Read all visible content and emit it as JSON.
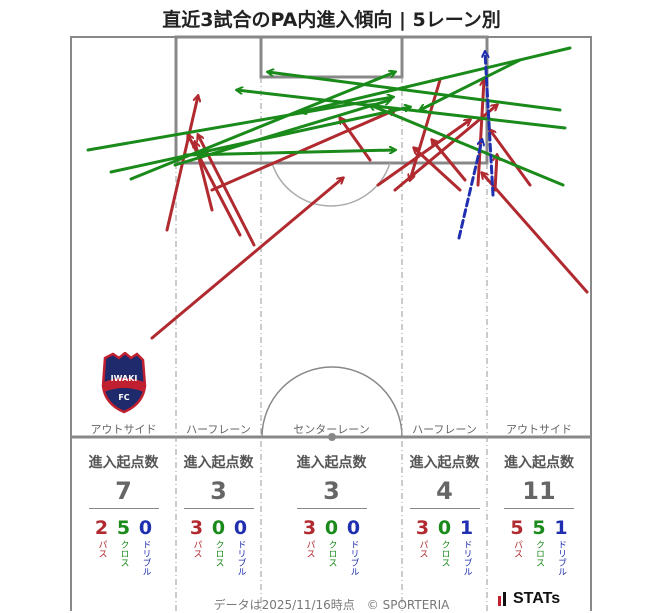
{
  "title": "直近3試合のPA内進入傾向 | 5レーン別",
  "colors": {
    "pass": "#b02a30",
    "cross": "#1a8a1a",
    "dribble": "#1f2fb0",
    "pitch_line": "#888888"
  },
  "lanes": [
    {
      "label": "アウトサイド",
      "header": "進入起点数",
      "total": "7",
      "pass": "2",
      "cross": "5",
      "dribble": "0"
    },
    {
      "label": "ハーフレーン",
      "header": "進入起点数",
      "total": "3",
      "pass": "3",
      "cross": "0",
      "dribble": "0"
    },
    {
      "label": "センターレーン",
      "header": "進入起点数",
      "total": "3",
      "pass": "3",
      "cross": "0",
      "dribble": "0"
    },
    {
      "label": "ハーフレーン",
      "header": "進入起点数",
      "total": "4",
      "pass": "3",
      "cross": "0",
      "dribble": "1"
    },
    {
      "label": "アウトサイド",
      "header": "進入起点数",
      "total": "11",
      "pass": "5",
      "cross": "5",
      "dribble": "1"
    }
  ],
  "breakdown_labels": {
    "pass": "パス",
    "cross": "クロス",
    "dribble": "ドリブル"
  },
  "logo_text": {
    "top": "IWAKI",
    "bottom": "FC"
  },
  "footer": "データは2025/11/16時点　© SPORTERIA",
  "brand": "STATs",
  "chart_data": {
    "type": "arrow-map",
    "entries": [
      {
        "kind": "pass",
        "from": [
          152,
          338
        ],
        "to": [
          343,
          178
        ]
      },
      {
        "kind": "pass",
        "from": [
          167,
          230
        ],
        "to": [
          198,
          96
        ]
      },
      {
        "kind": "pass",
        "from": [
          212,
          190
        ],
        "to": [
          395,
          110
        ]
      },
      {
        "kind": "pass",
        "from": [
          240,
          235
        ],
        "to": [
          188,
          135
        ]
      },
      {
        "kind": "pass",
        "from": [
          254,
          245
        ],
        "to": [
          198,
          135
        ]
      },
      {
        "kind": "pass",
        "from": [
          212,
          210
        ],
        "to": [
          195,
          142
        ]
      },
      {
        "kind": "pass",
        "from": [
          370,
          160
        ],
        "to": [
          340,
          118
        ]
      },
      {
        "kind": "pass",
        "from": [
          378,
          185
        ],
        "to": [
          470,
          120
        ]
      },
      {
        "kind": "pass",
        "from": [
          395,
          190
        ],
        "to": [
          497,
          105
        ]
      },
      {
        "kind": "pass",
        "from": [
          460,
          190
        ],
        "to": [
          414,
          148
        ]
      },
      {
        "kind": "pass",
        "from": [
          440,
          80
        ],
        "to": [
          410,
          180
        ]
      },
      {
        "kind": "pass",
        "from": [
          465,
          180
        ],
        "to": [
          432,
          140
        ]
      },
      {
        "kind": "pass",
        "from": [
          587,
          292
        ],
        "to": [
          482,
          173
        ]
      },
      {
        "kind": "pass",
        "from": [
          530,
          185
        ],
        "to": [
          490,
          130
        ]
      },
      {
        "kind": "pass",
        "from": [
          495,
          190
        ],
        "to": [
          497,
          155
        ]
      },
      {
        "kind": "pass",
        "from": [
          478,
          185
        ],
        "to": [
          484,
          80
        ]
      },
      {
        "kind": "cross",
        "from": [
          88,
          150
        ],
        "to": [
          393,
          97
        ]
      },
      {
        "kind": "cross",
        "from": [
          111,
          172
        ],
        "to": [
          410,
          107
        ]
      },
      {
        "kind": "cross",
        "from": [
          131,
          179
        ],
        "to": [
          395,
          72
        ]
      },
      {
        "kind": "cross",
        "from": [
          175,
          165
        ],
        "to": [
          390,
          100
        ]
      },
      {
        "kind": "cross",
        "from": [
          185,
          155
        ],
        "to": [
          395,
          150
        ]
      },
      {
        "kind": "cross",
        "from": [
          570,
          48
        ],
        "to": [
          301,
          112
        ]
      },
      {
        "kind": "cross",
        "from": [
          560,
          110
        ],
        "to": [
          268,
          72
        ]
      },
      {
        "kind": "cross",
        "from": [
          565,
          128
        ],
        "to": [
          237,
          90
        ]
      },
      {
        "kind": "cross",
        "from": [
          563,
          185
        ],
        "to": [
          370,
          105
        ]
      },
      {
        "kind": "cross",
        "from": [
          520,
          60
        ],
        "to": [
          420,
          110
        ]
      },
      {
        "kind": "dribble",
        "from": [
          459,
          238
        ],
        "to": [
          482,
          140
        ]
      },
      {
        "kind": "dribble",
        "from": [
          493,
          195
        ],
        "to": [
          485,
          52
        ]
      }
    ]
  }
}
